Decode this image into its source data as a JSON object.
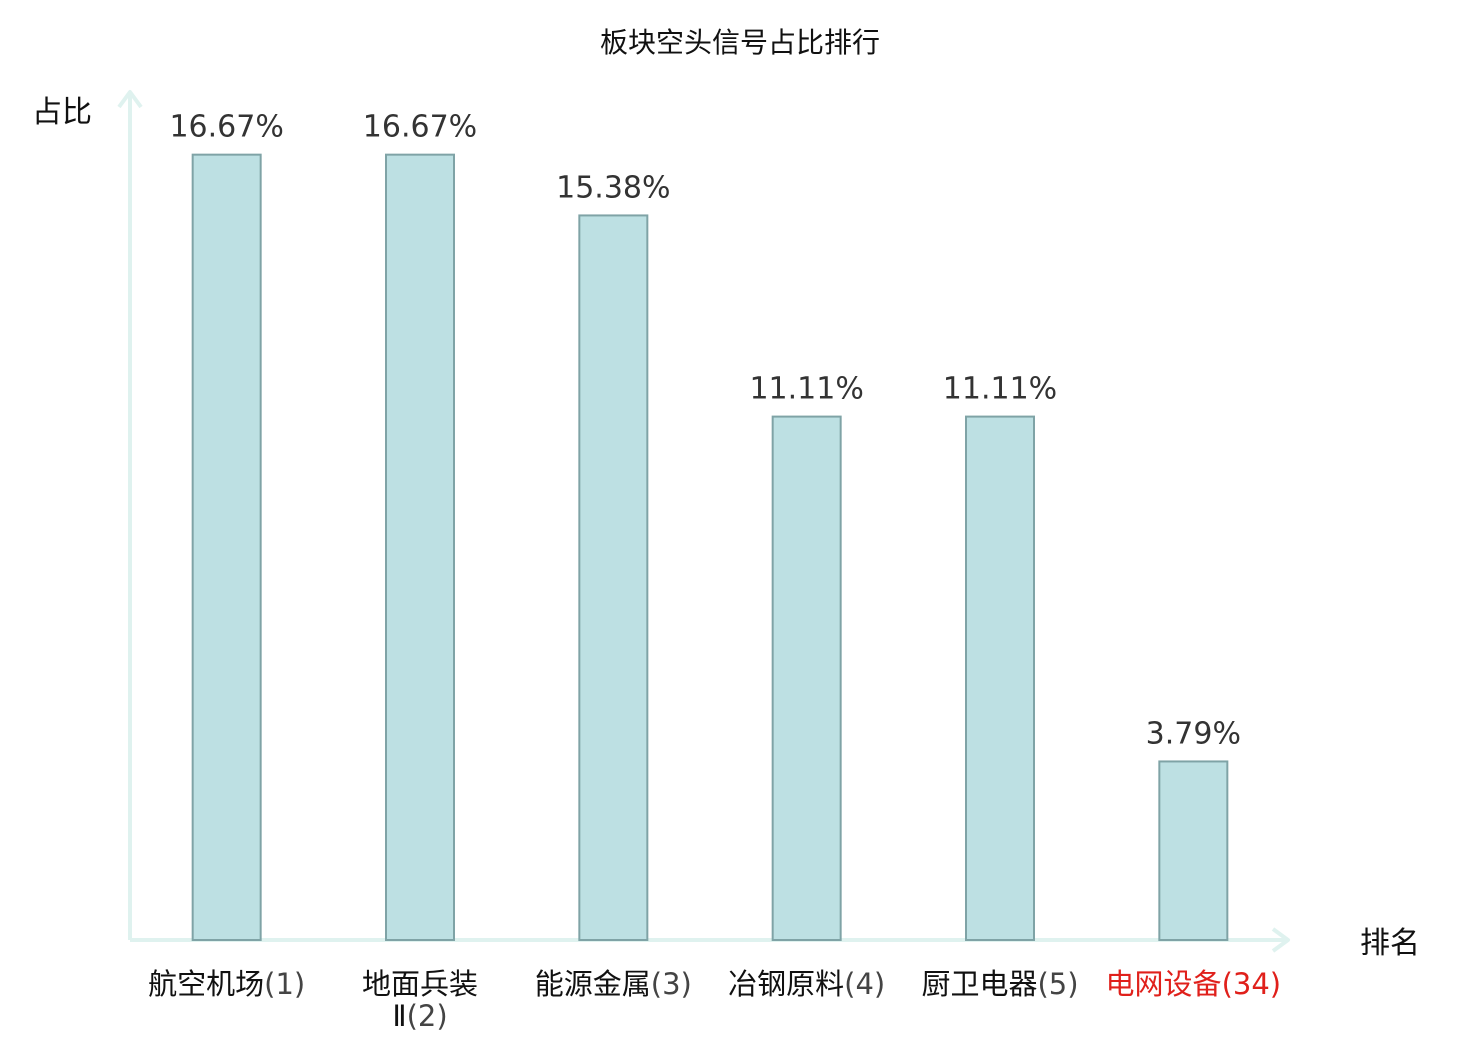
{
  "chart_data": {
    "type": "bar",
    "title": "板块空头信号占比排行",
    "ylabel": "占比",
    "xlabel": "排名",
    "ylim": [
      0,
      18
    ],
    "grid": false,
    "categories": [
      {
        "name": "航空机场",
        "rank": "(1)",
        "highlight": false
      },
      {
        "name": "地面兵装Ⅱ",
        "rank": "(2)",
        "highlight": false
      },
      {
        "name": "能源金属",
        "rank": "(3)",
        "highlight": false
      },
      {
        "name": "冶钢原料",
        "rank": "(4)",
        "highlight": false
      },
      {
        "name": "厨卫电器",
        "rank": "(5)",
        "highlight": false
      },
      {
        "name": "电网设备",
        "rank": "(34)",
        "highlight": true
      }
    ],
    "values": [
      16.67,
      16.67,
      15.38,
      11.11,
      11.11,
      3.79
    ],
    "value_labels": [
      "16.67%",
      "16.67%",
      "15.38%",
      "11.11%",
      "11.11%",
      "3.79%"
    ],
    "colors": {
      "bar_fill": "#bde0e3",
      "bar_stroke": "#7fa3a6",
      "axis": "#dff2ef",
      "highlight": "#e0201b"
    }
  }
}
